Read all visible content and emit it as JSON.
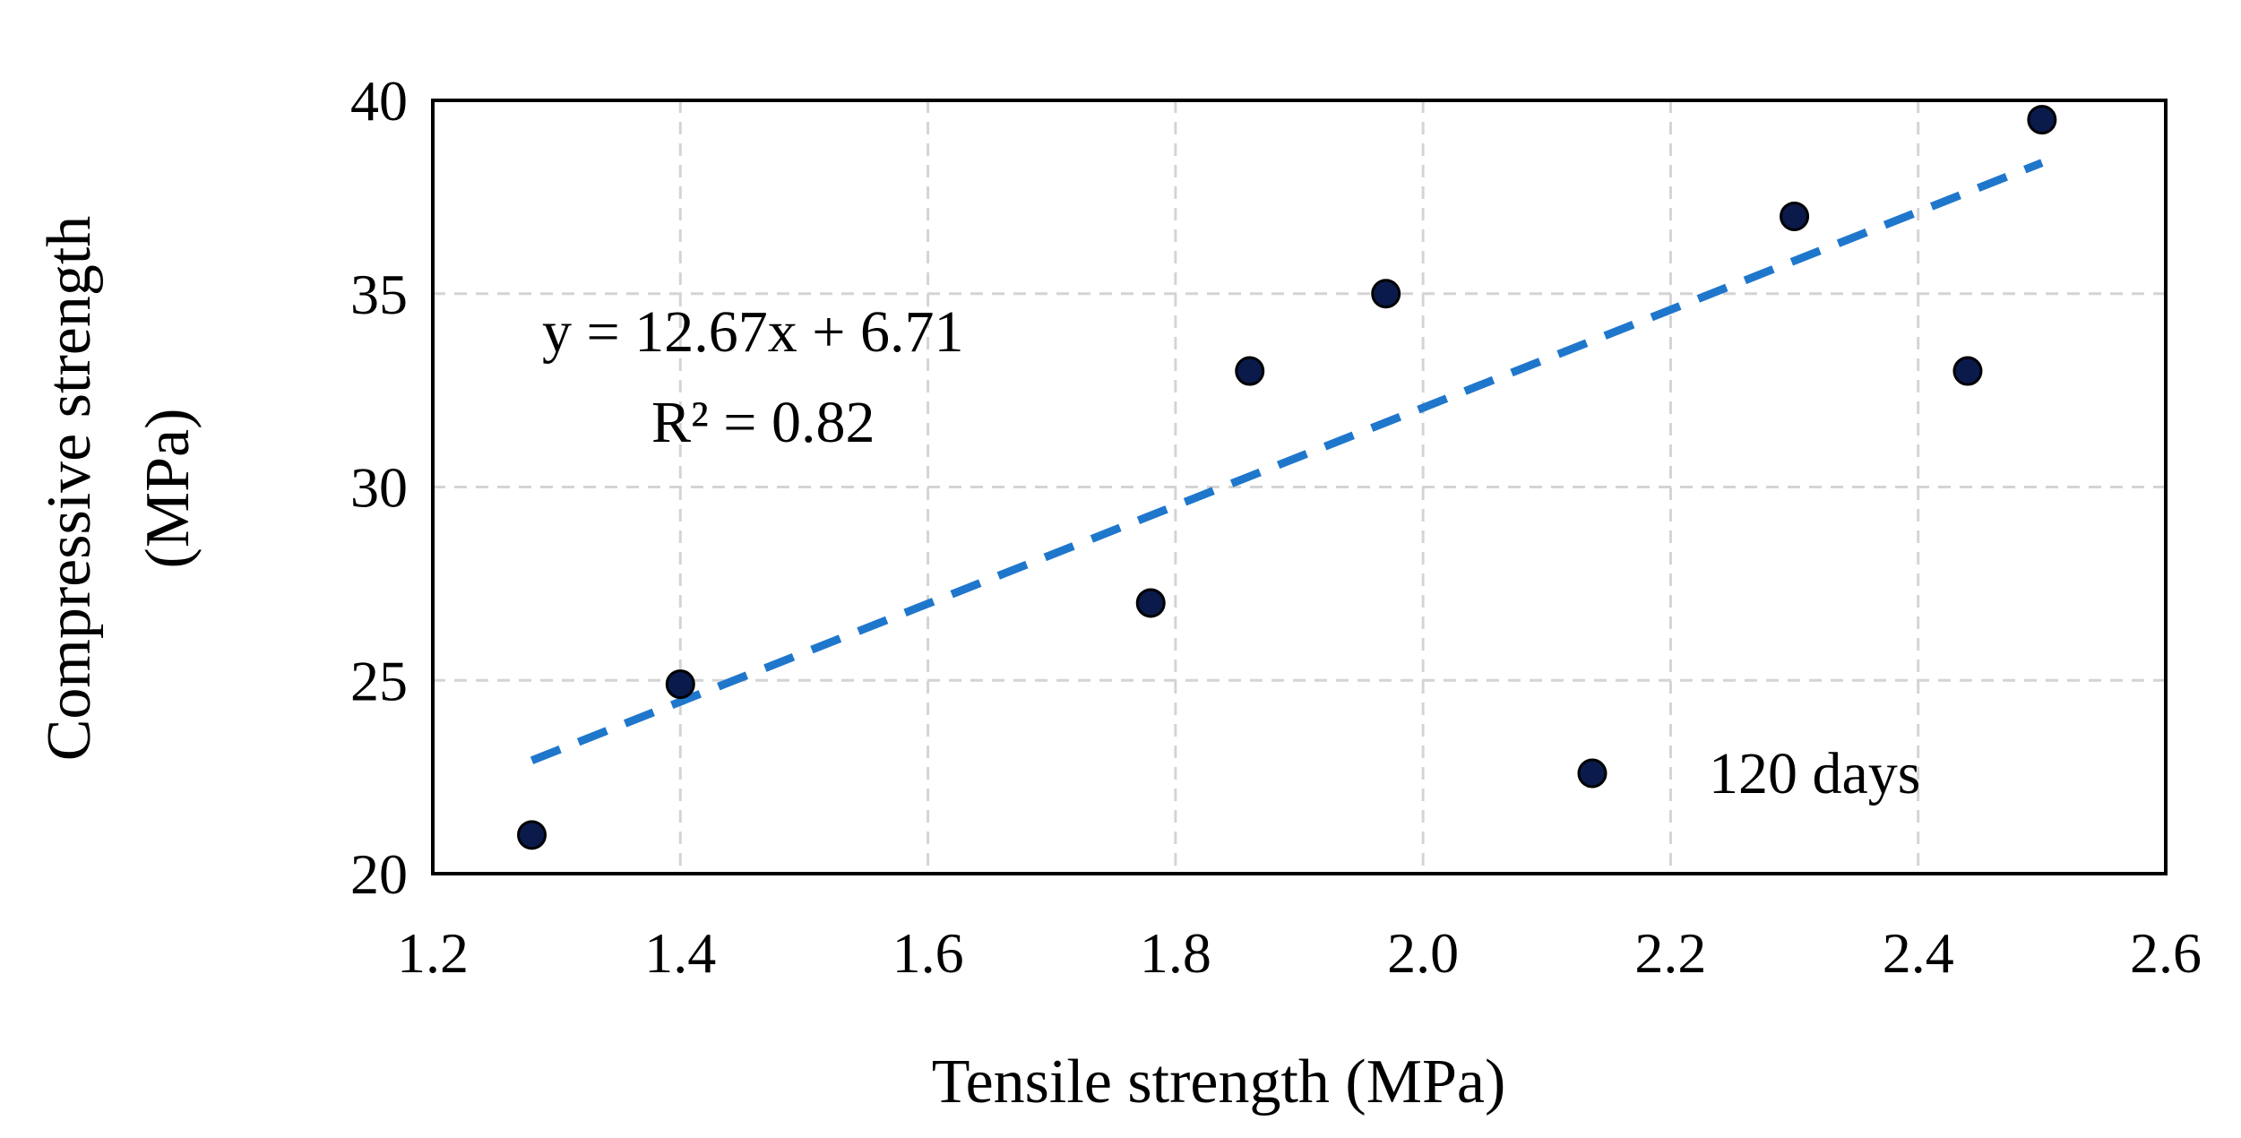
{
  "chart_data": {
    "type": "scatter",
    "title": "",
    "xlabel": "Tensile strength (MPa)",
    "ylabel_line1": "Compressive strength",
    "ylabel_line2": "(MPa)",
    "xlim": [
      1.2,
      2.6
    ],
    "ylim": [
      20,
      40
    ],
    "xticks": [
      1.2,
      1.4,
      1.6,
      1.8,
      2.0,
      2.2,
      2.4,
      2.6
    ],
    "xtick_labels": [
      "1.2",
      "1.4",
      "1.6",
      "1.8",
      "2.0",
      "2.2",
      "2.4",
      "2.6"
    ],
    "yticks": [
      20,
      25,
      30,
      35,
      40
    ],
    "ytick_labels": [
      "20",
      "25",
      "30",
      "35",
      "40"
    ],
    "grid": true,
    "legend_position": "bottom-right",
    "series": [
      {
        "name": "120 days",
        "color": "#0a1a4a",
        "points": [
          {
            "x": 1.28,
            "y": 21.0
          },
          {
            "x": 1.4,
            "y": 24.9
          },
          {
            "x": 1.78,
            "y": 27.0
          },
          {
            "x": 1.86,
            "y": 33.0
          },
          {
            "x": 1.97,
            "y": 35.0
          },
          {
            "x": 2.3,
            "y": 37.0
          },
          {
            "x": 2.44,
            "y": 33.0
          },
          {
            "x": 2.5,
            "y": 39.5
          }
        ]
      }
    ],
    "trendline": {
      "slope": 12.67,
      "intercept": 6.71,
      "x_range": [
        1.28,
        2.5
      ],
      "color": "#1f77cc",
      "style": "dashed"
    },
    "annotations": {
      "equation": "y = 12.67x + 6.71",
      "r_squared": "R² = 0.82"
    }
  }
}
